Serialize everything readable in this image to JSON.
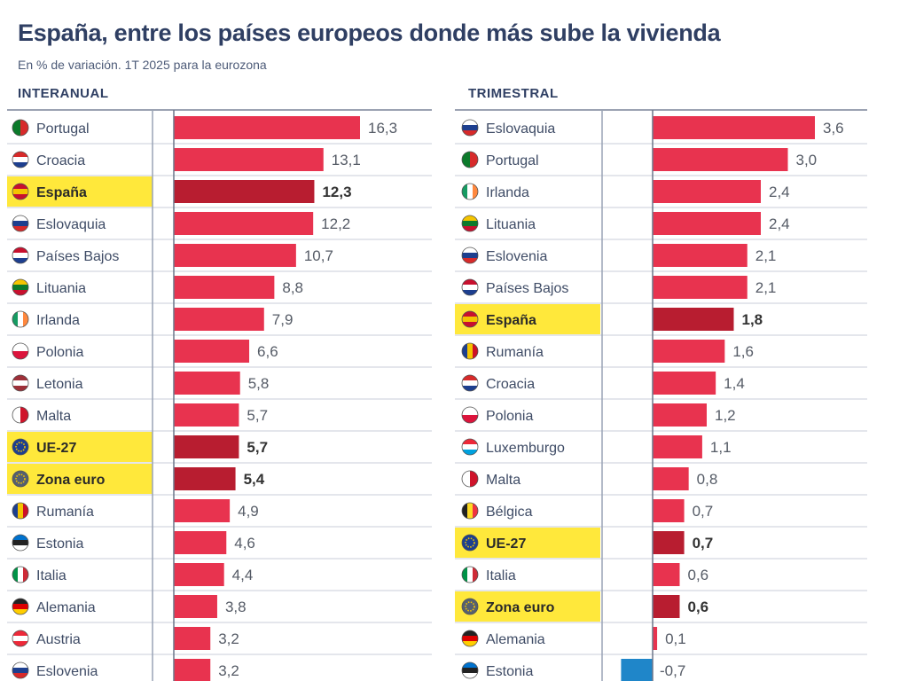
{
  "title": "España, entre los países europeos donde más sube la vivienda",
  "subtitle": "En % de variación. 1T 2025 para la eurozona",
  "colors": {
    "bar": "#e8334f",
    "bar_highlight": "#b81d30",
    "bar_negative": "#1f86c9",
    "highlight_bg": "#ffe83b",
    "title": "#2f3f63",
    "grid": "#9aa4b5"
  },
  "chart_data": [
    {
      "type": "bar",
      "orientation": "horizontal",
      "title": "INTERANUAL",
      "categories": [
        "Portugal",
        "Croacia",
        "España",
        "Eslovaquia",
        "Países Bajos",
        "Lituania",
        "Irlanda",
        "Polonia",
        "Letonia",
        "Malta",
        "UE-27",
        "Zona euro",
        "Rumanía",
        "Estonia",
        "Italia",
        "Alemania",
        "Austria",
        "Eslovenia"
      ],
      "values": [
        16.3,
        13.1,
        12.3,
        12.2,
        10.7,
        8.8,
        7.9,
        6.6,
        5.8,
        5.7,
        5.7,
        5.4,
        4.9,
        4.6,
        4.4,
        3.8,
        3.2,
        3.2
      ],
      "value_labels": [
        "16,3",
        "13,1",
        "12,3",
        "12,2",
        "10,7",
        "8,8",
        "7,9",
        "6,6",
        "5,8",
        "5,7",
        "5,7",
        "5,4",
        "4,9",
        "4,6",
        "4,4",
        "3,8",
        "3,2",
        "3,2"
      ],
      "highlighted": [
        "España",
        "UE-27",
        "Zona euro"
      ],
      "xlim": [
        0,
        16.3
      ],
      "icons": [
        "flag-portugal-icon",
        "flag-croatia-icon",
        "flag-spain-icon",
        "flag-slovakia-icon",
        "flag-netherlands-icon",
        "flag-lithuania-icon",
        "flag-ireland-icon",
        "flag-poland-icon",
        "flag-latvia-icon",
        "flag-malta-icon",
        "flag-eu-icon",
        "flag-euro-icon",
        "flag-romania-icon",
        "flag-estonia-icon",
        "flag-italy-icon",
        "flag-germany-icon",
        "flag-austria-icon",
        "flag-slovenia-icon"
      ]
    },
    {
      "type": "bar",
      "orientation": "horizontal",
      "title": "TRIMESTRAL",
      "categories": [
        "Eslovaquia",
        "Portugal",
        "Irlanda",
        "Lituania",
        "Eslovenia",
        "Países Bajos",
        "España",
        "Rumanía",
        "Croacia",
        "Polonia",
        "Luxemburgo",
        "Malta",
        "Bélgica",
        "UE-27",
        "Italia",
        "Zona euro",
        "Alemania",
        "Estonia"
      ],
      "values": [
        3.6,
        3.0,
        2.4,
        2.4,
        2.1,
        2.1,
        1.8,
        1.6,
        1.4,
        1.2,
        1.1,
        0.8,
        0.7,
        0.7,
        0.6,
        0.6,
        0.1,
        -0.7
      ],
      "value_labels": [
        "3,6",
        "3,0",
        "2,4",
        "2,4",
        "2,1",
        "2,1",
        "1,8",
        "1,6",
        "1,4",
        "1,2",
        "1,1",
        "0,8",
        "0,7",
        "0,7",
        "0,6",
        "0,6",
        "0,1",
        "-0,7"
      ],
      "highlighted": [
        "España",
        "UE-27",
        "Zona euro"
      ],
      "xlim": [
        -0.7,
        3.6
      ],
      "icons": [
        "flag-slovakia-icon",
        "flag-portugal-icon",
        "flag-ireland-icon",
        "flag-lithuania-icon",
        "flag-slovenia-icon",
        "flag-netherlands-icon",
        "flag-spain-icon",
        "flag-romania-icon",
        "flag-croatia-icon",
        "flag-poland-icon",
        "flag-luxembourg-icon",
        "flag-malta-icon",
        "flag-belgium-icon",
        "flag-eu-icon",
        "flag-italy-icon",
        "flag-euro-icon",
        "flag-germany-icon",
        "flag-estonia-icon"
      ]
    }
  ]
}
